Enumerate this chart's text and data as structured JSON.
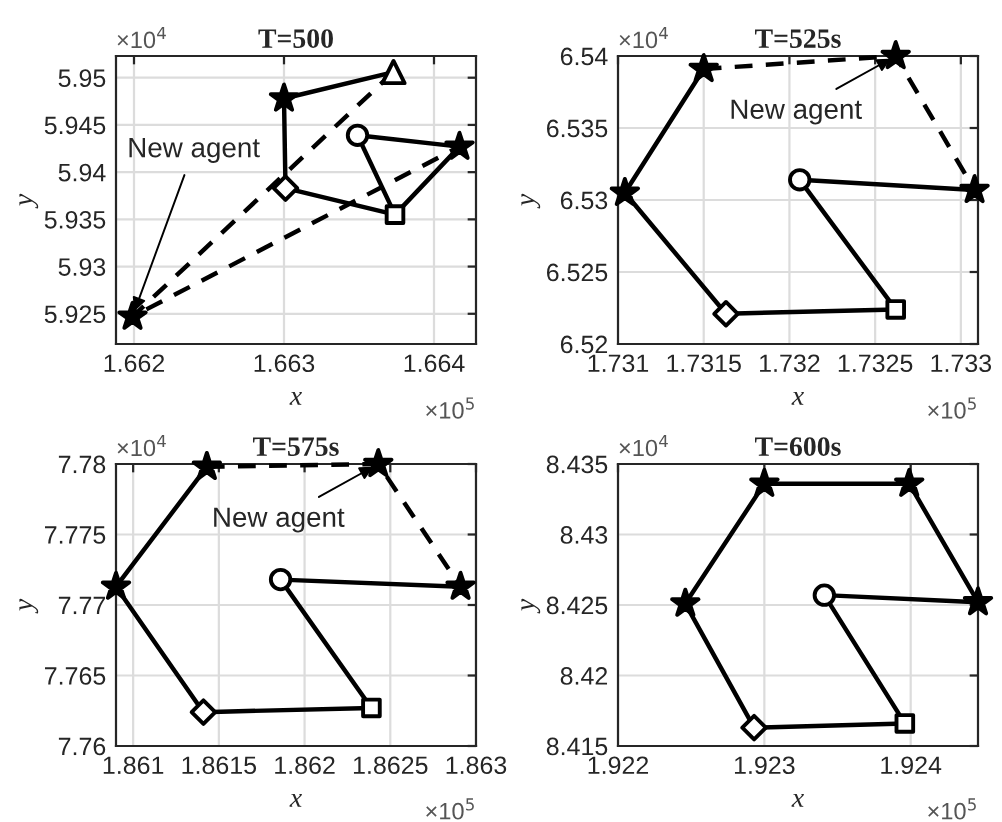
{
  "chart_data": [
    {
      "type": "line",
      "title": "T=500",
      "xlabel": "x",
      "ylabel": "y",
      "grid": true,
      "xlim": [
        1.66188,
        1.66428
      ],
      "ylim": [
        5.9218,
        5.9523
      ],
      "xticks": [
        1.662,
        1.663,
        1.664
      ],
      "yticks": [
        5.925,
        5.93,
        5.935,
        5.94,
        5.945,
        5.95
      ],
      "annotations": [
        {
          "text": "New agent",
          "x": 1.66199,
          "y": 5.9247
        },
        "×10$^{4}$",
        "×10$^{5}$"
      ],
      "series": [
        {
          "line_style": "solid",
          "color": "#000000",
          "x": [
            1.66373,
            1.663,
            1.66301,
            1.66374,
            1.66349,
            1.66417,
            1.66374
          ],
          "values": [
            5.9506,
            5.9478,
            5.9383,
            5.9355,
            5.9439,
            5.9427,
            5.9355
          ]
        },
        {
          "line_style": "dashed",
          "color": "#000000",
          "x": [
            1.66373,
            1.66199,
            1.66417
          ],
          "values": [
            5.9506,
            5.9247,
            5.9427
          ]
        },
        {
          "type": "scatter",
          "marker": "triangle",
          "color": "#000000",
          "x": [
            1.66373
          ],
          "values": [
            5.9506
          ]
        },
        {
          "type": "scatter",
          "marker": "star",
          "color": "#000000",
          "x": [
            1.663,
            1.66417,
            1.66199
          ],
          "values": [
            5.9478,
            5.9427,
            5.9247
          ]
        },
        {
          "type": "scatter",
          "marker": "diamond",
          "color": "#000000",
          "x": [
            1.66301
          ],
          "values": [
            5.9383
          ]
        },
        {
          "type": "scatter",
          "marker": "circle",
          "color": "#000000",
          "x": [
            1.66349
          ],
          "values": [
            5.9439
          ]
        },
        {
          "type": "scatter",
          "marker": "square",
          "color": "#000000",
          "x": [
            1.66374
          ],
          "values": [
            5.9355
          ]
        }
      ]
    },
    {
      "type": "line",
      "title": "T=525s",
      "xlabel": "x",
      "ylabel": "y",
      "grid": true,
      "xlim": [
        1.731,
        1.7331
      ],
      "ylim": [
        6.52,
        6.54
      ],
      "xticks": [
        1.731,
        1.7315,
        1.732,
        1.7325,
        1.733
      ],
      "yticks": [
        6.52,
        6.525,
        6.53,
        6.535,
        6.54
      ],
      "annotations": [
        {
          "text": "New agent",
          "x": 1.73262,
          "y": 6.54
        },
        "×10$^{4}$",
        "×10$^{5}$"
      ],
      "series": [
        {
          "line_style": "solid",
          "color": "#000000",
          "x": [
            1.7315,
            1.73104,
            1.73163,
            1.73262,
            1.73206,
            1.73308
          ],
          "values": [
            6.5391,
            6.5305,
            6.5221,
            6.5224,
            6.5314,
            6.5307
          ]
        },
        {
          "line_style": "dashed",
          "color": "#000000",
          "x": [
            1.7315,
            1.73262,
            1.73308
          ],
          "values": [
            6.5391,
            6.54,
            6.5307
          ]
        },
        {
          "type": "scatter",
          "marker": "star",
          "color": "#000000",
          "x": [
            1.7315,
            1.73104,
            1.73308,
            1.73262
          ],
          "values": [
            6.5391,
            6.5305,
            6.5307,
            6.54
          ]
        },
        {
          "type": "scatter",
          "marker": "diamond",
          "color": "#000000",
          "x": [
            1.73163
          ],
          "values": [
            6.5221
          ]
        },
        {
          "type": "scatter",
          "marker": "circle",
          "color": "#000000",
          "x": [
            1.73206
          ],
          "values": [
            6.5314
          ]
        },
        {
          "type": "scatter",
          "marker": "square",
          "color": "#000000",
          "x": [
            1.73262
          ],
          "values": [
            6.5224
          ]
        }
      ]
    },
    {
      "type": "line",
      "title": "T=575s",
      "xlabel": "x",
      "ylabel": "y",
      "grid": true,
      "xlim": [
        1.8609,
        1.863
      ],
      "ylim": [
        7.76,
        7.78
      ],
      "xticks": [
        1.861,
        1.8615,
        1.862,
        1.8625,
        1.863
      ],
      "yticks": [
        7.76,
        7.765,
        7.77,
        7.775,
        7.78
      ],
      "annotations": [
        {
          "text": "New agent",
          "x": 1.86243,
          "y": 7.78
        },
        "×10$^{4}$",
        "×10$^{5}$"
      ],
      "series": [
        {
          "line_style": "solid",
          "color": "#000000",
          "x": [
            1.86143,
            1.8609,
            1.86141,
            1.86239,
            1.86186,
            1.86291
          ],
          "values": [
            7.7798,
            7.7713,
            7.7624,
            7.7627,
            7.7718,
            7.7713
          ]
        },
        {
          "line_style": "dashed",
          "color": "#000000",
          "x": [
            1.86143,
            1.86243,
            1.86291
          ],
          "values": [
            7.7798,
            7.78,
            7.7713
          ]
        },
        {
          "type": "scatter",
          "marker": "star",
          "color": "#000000",
          "x": [
            1.86143,
            1.8609,
            1.86291,
            1.86243
          ],
          "values": [
            7.7798,
            7.7713,
            7.7713,
            7.78
          ]
        },
        {
          "type": "scatter",
          "marker": "diamond",
          "color": "#000000",
          "x": [
            1.86141
          ],
          "values": [
            7.7624
          ]
        },
        {
          "type": "scatter",
          "marker": "circle",
          "color": "#000000",
          "x": [
            1.86186
          ],
          "values": [
            7.7718
          ]
        },
        {
          "type": "scatter",
          "marker": "square",
          "color": "#000000",
          "x": [
            1.86239
          ],
          "values": [
            7.7627
          ]
        }
      ]
    },
    {
      "type": "line",
      "title": "T=600s",
      "xlabel": "x",
      "ylabel": "y",
      "grid": true,
      "xlim": [
        1.922,
        1.92446
      ],
      "ylim": [
        8.415,
        8.435
      ],
      "xticks": [
        1.922,
        1.923,
        1.924
      ],
      "yticks": [
        8.415,
        8.42,
        8.425,
        8.43,
        8.435
      ],
      "annotations": [
        "×10$^{4}$",
        "×10$^{5}$"
      ],
      "series": [
        {
          "line_style": "solid",
          "color": "#000000",
          "x": [
            1.92246,
            1.923,
            1.92399,
            1.92446
          ],
          "values": [
            8.4251,
            8.4336,
            8.4336,
            8.4252
          ]
        },
        {
          "line_style": "solid",
          "color": "#000000",
          "x": [
            1.92446,
            1.92341,
            1.92396,
            1.92293,
            1.92246
          ],
          "values": [
            8.4252,
            8.4257,
            8.4166,
            8.4163,
            8.4251
          ]
        },
        {
          "type": "scatter",
          "marker": "star",
          "color": "#000000",
          "x": [
            1.92246,
            1.923,
            1.92399,
            1.92446
          ],
          "values": [
            8.4251,
            8.4336,
            8.4336,
            8.4252
          ]
        },
        {
          "type": "scatter",
          "marker": "diamond",
          "color": "#000000",
          "x": [
            1.92293
          ],
          "values": [
            8.4163
          ]
        },
        {
          "type": "scatter",
          "marker": "circle",
          "color": "#000000",
          "x": [
            1.92341
          ],
          "values": [
            8.4257
          ]
        },
        {
          "type": "scatter",
          "marker": "square",
          "color": "#000000",
          "x": [
            1.92396
          ],
          "values": [
            8.4166
          ]
        }
      ]
    }
  ]
}
